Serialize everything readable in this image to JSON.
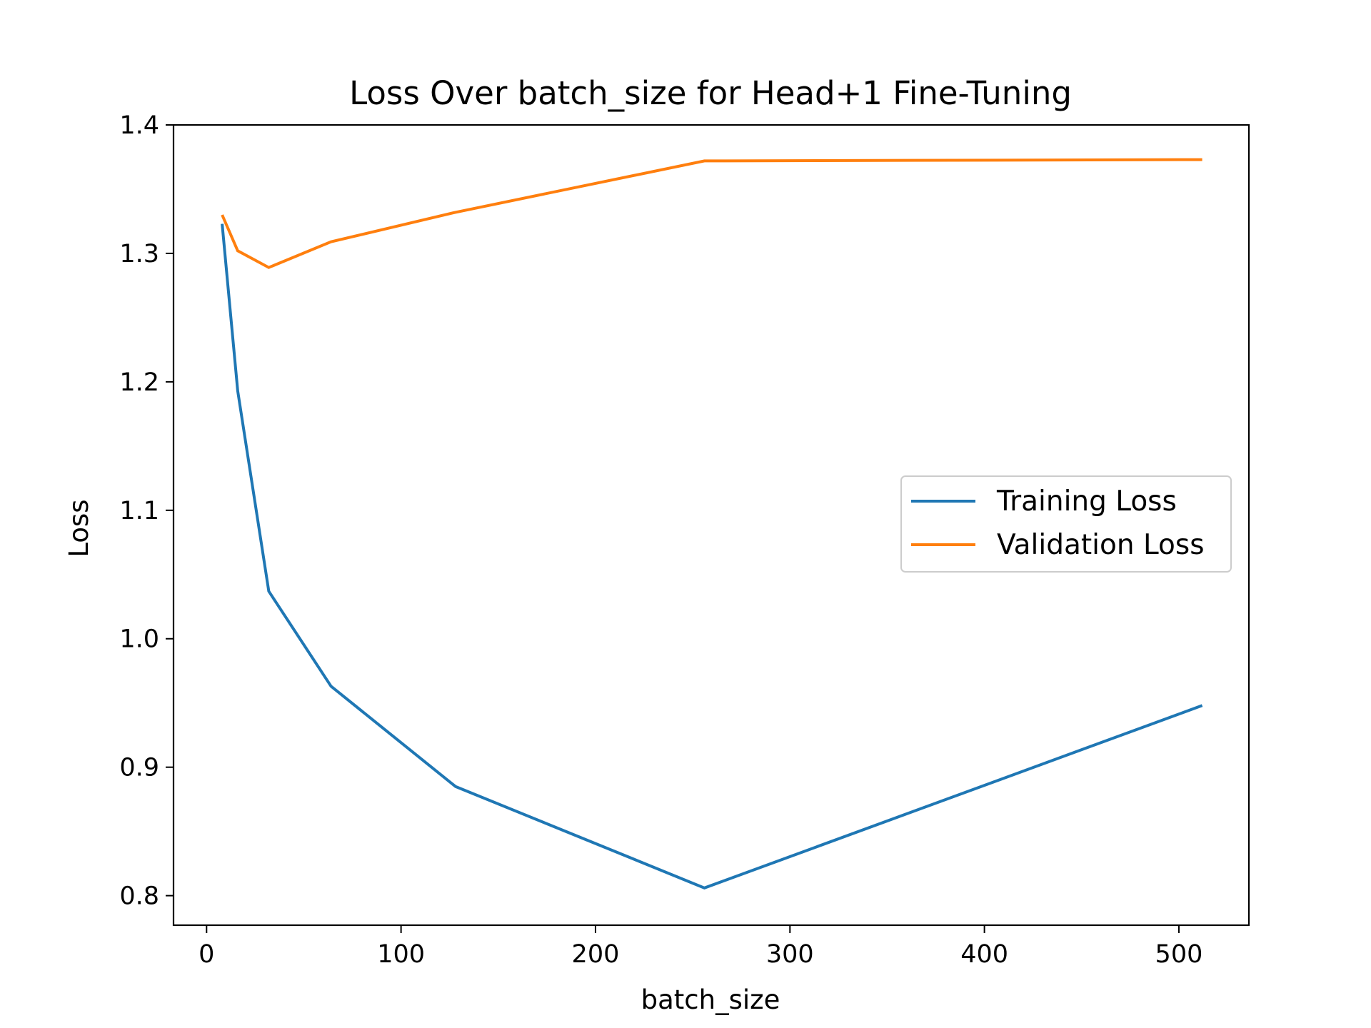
{
  "chart_data": {
    "type": "line",
    "title": "Loss Over batch_size for Head+1 Fine-Tuning",
    "xlabel": "batch_size",
    "ylabel": "Loss",
    "xlim": [
      -17,
      536
    ],
    "ylim": [
      0.777,
      1.4
    ],
    "xticks": [
      0,
      100,
      200,
      300,
      400,
      500
    ],
    "yticks": [
      0.8,
      0.9,
      1.0,
      1.1,
      1.2,
      1.3,
      1.4
    ],
    "xtick_labels": [
      "0",
      "100",
      "200",
      "300",
      "400",
      "500"
    ],
    "ytick_labels": [
      "0.8",
      "0.9",
      "1.0",
      "1.1",
      "1.2",
      "1.3",
      "1.4"
    ],
    "x": [
      8,
      16,
      32,
      64,
      128,
      256,
      512
    ],
    "series": [
      {
        "name": "Training Loss",
        "color": "#1f77b4",
        "values": [
          1.323,
          1.193,
          1.037,
          0.963,
          0.885,
          0.806,
          0.948
        ]
      },
      {
        "name": "Validation Loss",
        "color": "#ff7f0e",
        "values": [
          1.33,
          1.302,
          1.289,
          1.309,
          1.332,
          1.372,
          1.373
        ]
      }
    ],
    "grid": false,
    "legend_position": "center-right"
  }
}
